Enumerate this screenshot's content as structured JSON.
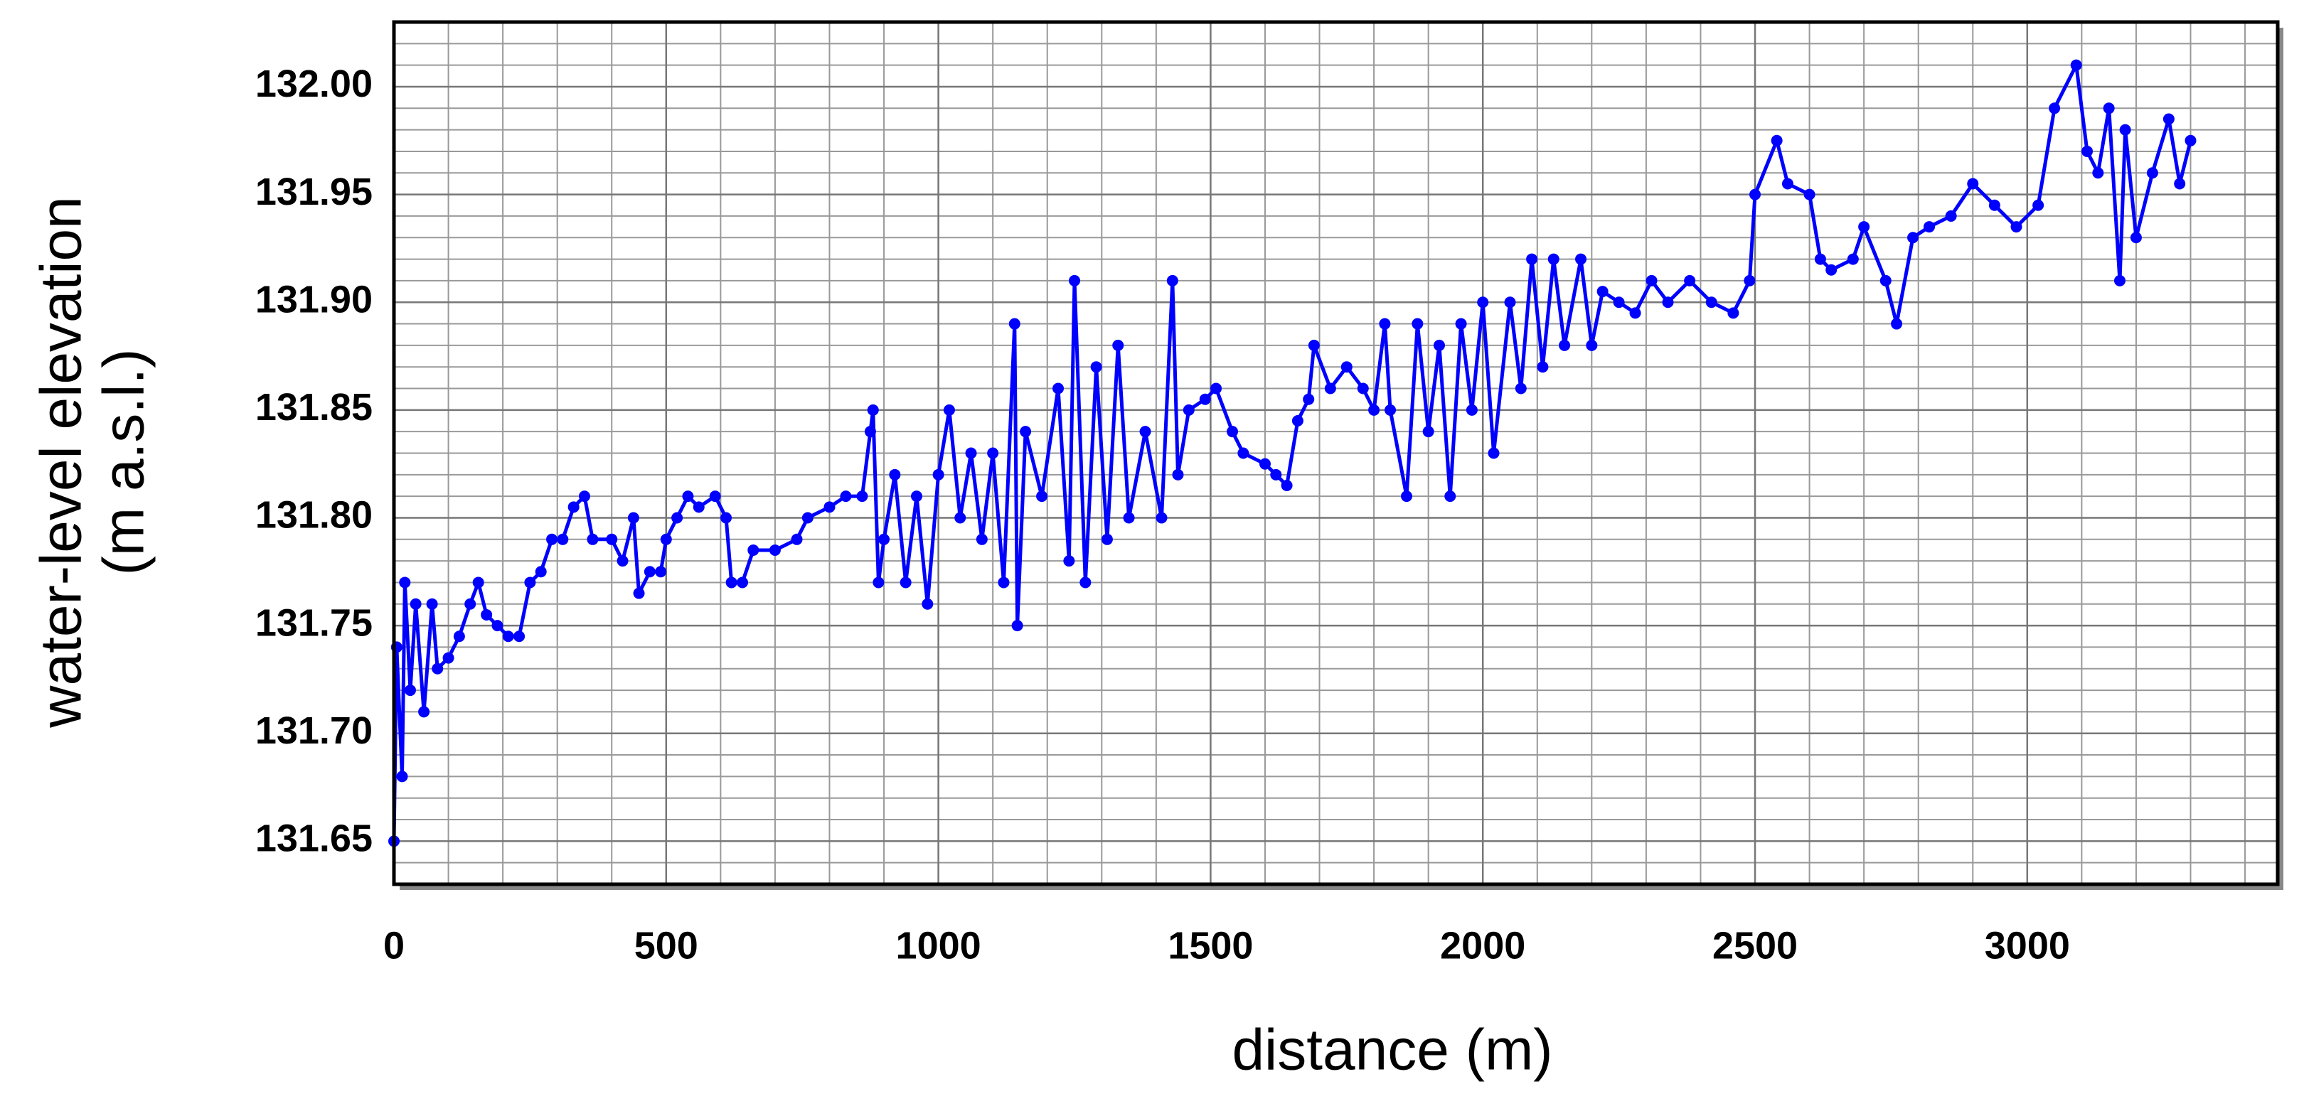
{
  "chart_data": {
    "type": "line",
    "xlabel": "distance (m)",
    "ylabel": [
      "water-level elevation",
      "(m a.s.l.)"
    ],
    "xlim": [
      0,
      3460
    ],
    "ylim": [
      131.63,
      132.03
    ],
    "xticks": [
      0,
      500,
      1000,
      1500,
      2000,
      2500,
      3000
    ],
    "yticks": [
      131.65,
      {
        "value": 131.7,
        "label": "131.70"
      },
      131.75,
      {
        "value": 131.8,
        "label": "131.80"
      },
      131.85,
      {
        "value": 131.9,
        "label": "131.90"
      },
      131.95,
      {
        "value": 132.0,
        "label": "132.00"
      }
    ],
    "grid": true,
    "x": [
      0,
      5,
      15,
      20,
      30,
      40,
      55,
      70,
      80,
      100,
      120,
      140,
      155,
      170,
      190,
      210,
      230,
      250,
      270,
      290,
      310,
      330,
      350,
      365,
      400,
      420,
      440,
      450,
      470,
      490,
      500,
      520,
      540,
      560,
      590,
      610,
      620,
      640,
      660,
      700,
      740,
      760,
      800,
      830,
      860,
      875,
      880,
      890,
      900,
      920,
      940,
      960,
      980,
      1000,
      1020,
      1040,
      1060,
      1080,
      1100,
      1120,
      1140,
      1145,
      1160,
      1190,
      1220,
      1240,
      1250,
      1270,
      1290,
      1310,
      1330,
      1350,
      1380,
      1410,
      1430,
      1440,
      1460,
      1490,
      1510,
      1540,
      1560,
      1600,
      1620,
      1640,
      1660,
      1680,
      1690,
      1720,
      1750,
      1780,
      1800,
      1820,
      1830,
      1860,
      1880,
      1900,
      1920,
      1940,
      1960,
      1980,
      2000,
      2020,
      2050,
      2070,
      2090,
      2110,
      2130,
      2150,
      2180,
      2200,
      2220,
      2250,
      2280,
      2310,
      2340,
      2380,
      2420,
      2460,
      2490,
      2500,
      2540,
      2560,
      2600,
      2620,
      2640,
      2680,
      2700,
      2740,
      2760,
      2790,
      2820,
      2860,
      2900,
      2940,
      2980,
      3020,
      3050,
      3090,
      3110,
      3130,
      3150,
      3170,
      3180,
      3200,
      3230,
      3260,
      3280,
      3300
    ],
    "series": [
      {
        "color": "#0000ff",
        "values": [
          131.65,
          131.74,
          131.68,
          131.77,
          131.72,
          131.76,
          131.71,
          131.76,
          131.73,
          131.735,
          131.745,
          131.76,
          131.77,
          131.755,
          131.75,
          131.745,
          131.745,
          131.77,
          131.775,
          131.79,
          131.79,
          131.805,
          131.81,
          131.79,
          131.79,
          131.78,
          131.8,
          131.765,
          131.775,
          131.775,
          131.79,
          131.8,
          131.81,
          131.805,
          131.81,
          131.8,
          131.77,
          131.77,
          131.785,
          131.785,
          131.79,
          131.8,
          131.805,
          131.81,
          131.81,
          131.84,
          131.85,
          131.77,
          131.79,
          131.82,
          131.77,
          131.81,
          131.76,
          131.82,
          131.85,
          131.8,
          131.83,
          131.79,
          131.83,
          131.77,
          131.89,
          131.75,
          131.84,
          131.81,
          131.86,
          131.78,
          131.91,
          131.77,
          131.87,
          131.79,
          131.88,
          131.8,
          131.84,
          131.8,
          131.91,
          131.82,
          131.85,
          131.855,
          131.86,
          131.84,
          131.83,
          131.825,
          131.82,
          131.815,
          131.845,
          131.855,
          131.88,
          131.86,
          131.87,
          131.86,
          131.85,
          131.89,
          131.85,
          131.81,
          131.89,
          131.84,
          131.88,
          131.81,
          131.89,
          131.85,
          131.9,
          131.83,
          131.9,
          131.86,
          131.92,
          131.87,
          131.92,
          131.88,
          131.92,
          131.88,
          131.905,
          131.9,
          131.895,
          131.91,
          131.9,
          131.91,
          131.9,
          131.895,
          131.91,
          131.95,
          131.975,
          131.955,
          131.95,
          131.92,
          131.915,
          131.92,
          131.935,
          131.91,
          131.89,
          131.93,
          131.935,
          131.94,
          131.955,
          131.945,
          131.935,
          131.945,
          131.99,
          132.01,
          131.97,
          131.96,
          131.99,
          131.91,
          131.98,
          131.93,
          131.96,
          131.985,
          131.955,
          131.975
        ]
      }
    ]
  }
}
